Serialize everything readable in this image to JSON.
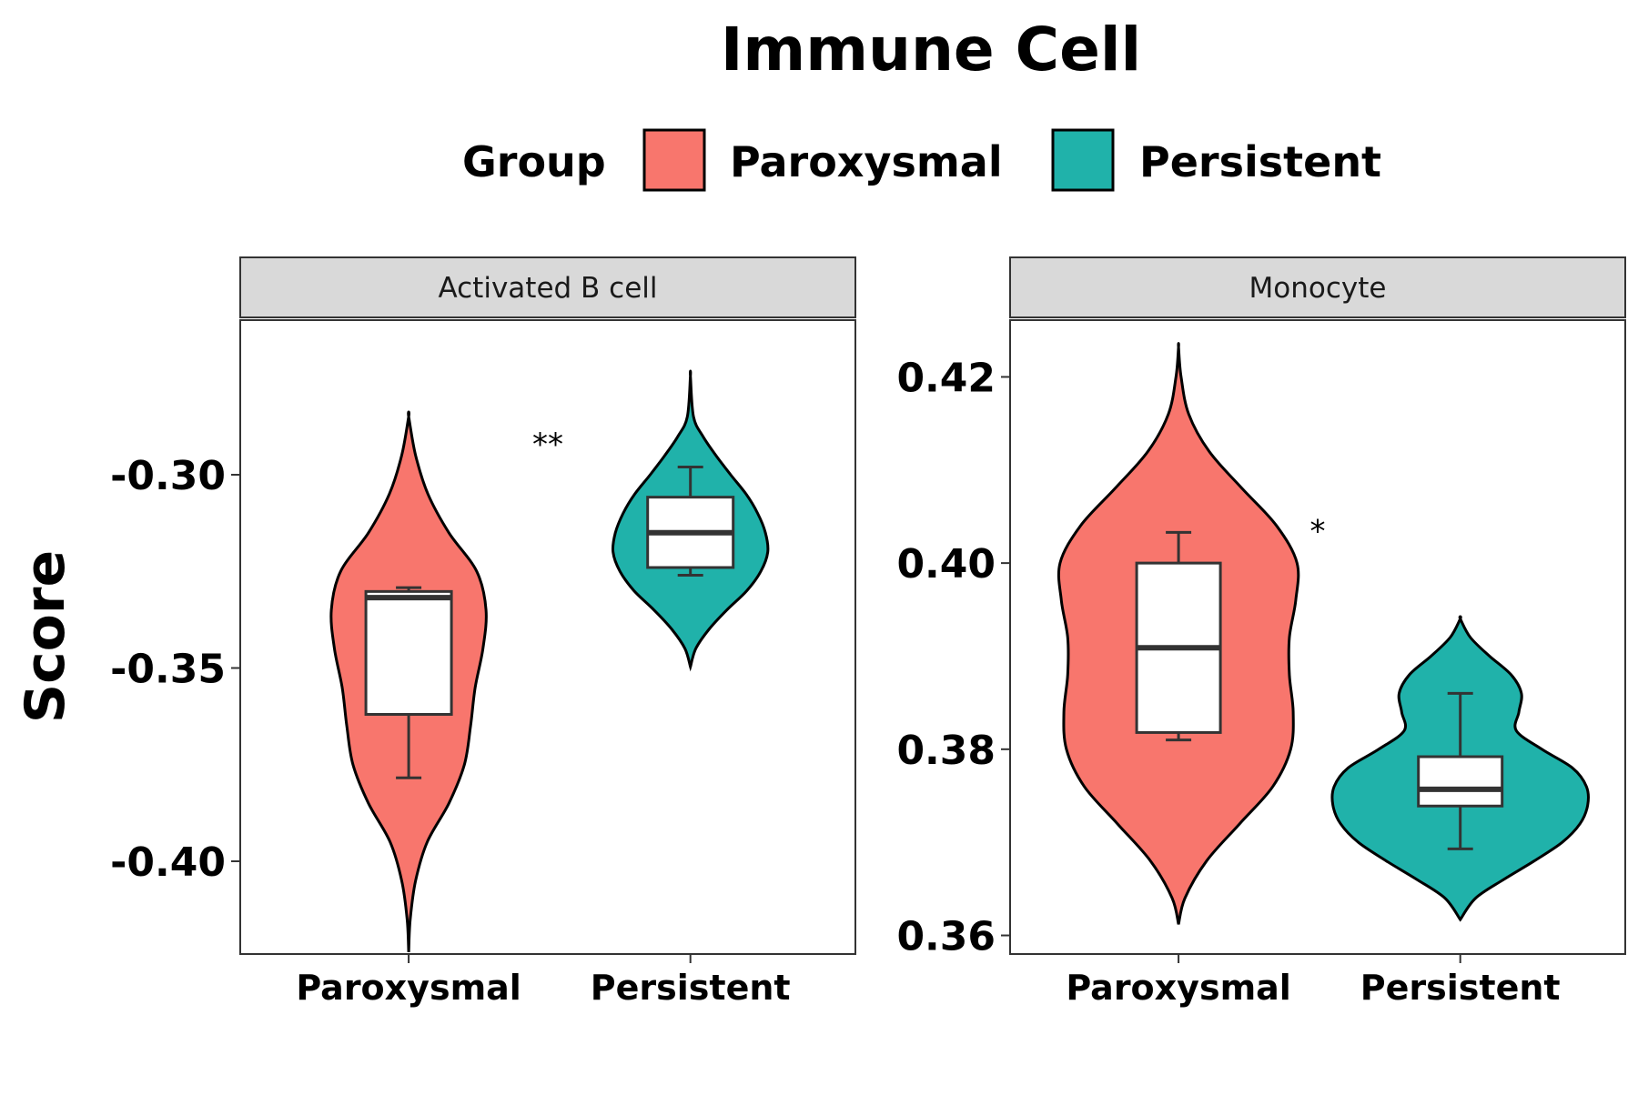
{
  "chart_data": {
    "type": "violin",
    "title": "Immune Cell",
    "ylabel": "Score",
    "legend": {
      "title": "Group",
      "position": "top",
      "entries": [
        {
          "name": "Paroxysmal",
          "color": "#F8766D"
        },
        {
          "name": "Persistent",
          "color": "#20B2AA"
        }
      ]
    },
    "categories": [
      "Paroxysmal",
      "Persistent"
    ],
    "grid": false,
    "panels": [
      {
        "strip": "Activated B cell",
        "ylim": [
          -0.424,
          -0.26
        ],
        "yticks": [
          -0.3,
          -0.35,
          -0.4
        ],
        "ytick_labels": [
          "-0.30",
          "-0.35",
          "-0.40"
        ],
        "significance": "**",
        "significance_y": -0.292,
        "groups": [
          {
            "name": "Paroxysmal",
            "box": {
              "min": -0.3784,
              "q1": -0.362,
              "median": -0.3318,
              "q3": -0.3302,
              "max": -0.3292
            },
            "density": [
              [
                -0.4235,
                0.0
              ],
              [
                -0.415,
                0.02
              ],
              [
                -0.405,
                0.09
              ],
              [
                -0.395,
                0.24
              ],
              [
                -0.385,
                0.52
              ],
              [
                -0.375,
                0.72
              ],
              [
                -0.365,
                0.8
              ],
              [
                -0.355,
                0.86
              ],
              [
                -0.345,
                0.96
              ],
              [
                -0.335,
                1.0
              ],
              [
                -0.325,
                0.88
              ],
              [
                -0.315,
                0.52
              ],
              [
                -0.305,
                0.25
              ],
              [
                -0.295,
                0.09
              ],
              [
                -0.285,
                0.0
              ]
            ]
          },
          {
            "name": "Persistent",
            "box": {
              "min": -0.326,
              "q1": -0.324,
              "median": -0.315,
              "q3": -0.3058,
              "max": -0.298
            },
            "density": [
              [
                -0.3497,
                0.0
              ],
              [
                -0.345,
                0.07
              ],
              [
                -0.34,
                0.24
              ],
              [
                -0.335,
                0.47
              ],
              [
                -0.33,
                0.73
              ],
              [
                -0.325,
                0.91
              ],
              [
                -0.32,
                1.0
              ],
              [
                -0.315,
                0.97
              ],
              [
                -0.31,
                0.87
              ],
              [
                -0.305,
                0.72
              ],
              [
                -0.3,
                0.52
              ],
              [
                -0.295,
                0.33
              ],
              [
                -0.29,
                0.16
              ],
              [
                -0.285,
                0.04
              ],
              [
                -0.2745,
                0.0
              ]
            ]
          }
        ]
      },
      {
        "strip": "Monocyte",
        "ylim": [
          0.358,
          0.4261
        ],
        "yticks": [
          0.42,
          0.4,
          0.38,
          0.36
        ],
        "ytick_labels": [
          "0.42",
          "0.40",
          "0.38",
          "0.36"
        ],
        "significance": "*",
        "significance_y": 0.4035,
        "groups": [
          {
            "name": "Paroxysmal",
            "box": {
              "min": 0.381,
              "q1": 0.3818,
              "median": 0.3909,
              "q3": 0.4,
              "max": 0.4033
            },
            "density": [
              [
                0.3612,
                0.0
              ],
              [
                0.364,
                0.05
              ],
              [
                0.368,
                0.22
              ],
              [
                0.372,
                0.48
              ],
              [
                0.376,
                0.74
              ],
              [
                0.38,
                0.88
              ],
              [
                0.384,
                0.9
              ],
              [
                0.388,
                0.87
              ],
              [
                0.392,
                0.87
              ],
              [
                0.396,
                0.92
              ],
              [
                0.4,
                0.93
              ],
              [
                0.404,
                0.77
              ],
              [
                0.408,
                0.5
              ],
              [
                0.412,
                0.24
              ],
              [
                0.416,
                0.08
              ],
              [
                0.42,
                0.02
              ],
              [
                0.4232,
                0.0
              ]
            ]
          },
          {
            "name": "Persistent",
            "box": {
              "min": 0.3693,
              "q1": 0.3739,
              "median": 0.3757,
              "q3": 0.3792,
              "max": 0.386
            },
            "density": [
              [
                0.3617,
                0.0
              ],
              [
                0.364,
                0.12
              ],
              [
                0.366,
                0.34
              ],
              [
                0.368,
                0.58
              ],
              [
                0.37,
                0.8
              ],
              [
                0.372,
                0.94
              ],
              [
                0.374,
                1.0
              ],
              [
                0.376,
                0.99
              ],
              [
                0.378,
                0.88
              ],
              [
                0.38,
                0.64
              ],
              [
                0.382,
                0.44
              ],
              [
                0.384,
                0.46
              ],
              [
                0.386,
                0.48
              ],
              [
                0.388,
                0.4
              ],
              [
                0.39,
                0.23
              ],
              [
                0.392,
                0.08
              ],
              [
                0.394,
                0.0
              ]
            ]
          }
        ]
      }
    ]
  }
}
